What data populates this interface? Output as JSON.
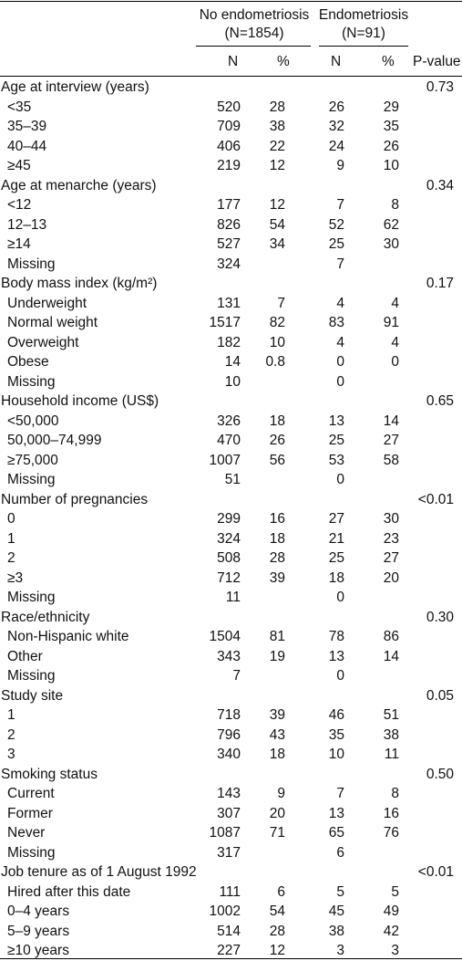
{
  "header": {
    "group1": "No endometriosis",
    "group1_n": "(N=1854)",
    "group2": "Endometriosis",
    "group2_n": "(N=91)",
    "col_n1": "N",
    "col_pct1": "%",
    "col_n2": "N",
    "col_pct2": "%",
    "col_p": "P-value"
  },
  "rows": [
    {
      "type": "cat",
      "label": "Age at interview (years)",
      "p": "0.73"
    },
    {
      "type": "item",
      "label": "<35",
      "n1": "520",
      "p1": "28",
      "n2": "26",
      "p2": "29"
    },
    {
      "type": "item",
      "label": "35–39",
      "n1": "709",
      "p1": "38",
      "n2": "32",
      "p2": "35"
    },
    {
      "type": "item",
      "label": "40–44",
      "n1": "406",
      "p1": "22",
      "n2": "24",
      "p2": "26"
    },
    {
      "type": "item",
      "label": "≥45",
      "n1": "219",
      "p1": "12",
      "n2": "9",
      "p2": "10"
    },
    {
      "type": "cat",
      "label": "Age at menarche (years)",
      "p": "0.34"
    },
    {
      "type": "item",
      "label": "<12",
      "n1": "177",
      "p1": "12",
      "n2": "7",
      "p2": "8"
    },
    {
      "type": "item",
      "label": "12–13",
      "n1": "826",
      "p1": "54",
      "n2": "52",
      "p2": "62"
    },
    {
      "type": "item",
      "label": "≥14",
      "n1": "527",
      "p1": "34",
      "n2": "25",
      "p2": "30"
    },
    {
      "type": "item",
      "label": "Missing",
      "n1": "324",
      "p1": "",
      "n2": "7",
      "p2": ""
    },
    {
      "type": "cat",
      "label": "Body mass index (kg/m²)",
      "p": "0.17"
    },
    {
      "type": "item",
      "label": "Underweight",
      "n1": "131",
      "p1": "7",
      "n2": "4",
      "p2": "4"
    },
    {
      "type": "item",
      "label": "Normal weight",
      "n1": "1517",
      "p1": "82",
      "n2": "83",
      "p2": "91"
    },
    {
      "type": "item",
      "label": "Overweight",
      "n1": "182",
      "p1": "10",
      "n2": "4",
      "p2": "4"
    },
    {
      "type": "item",
      "label": "Obese",
      "n1": "14",
      "p1": "0.8",
      "n2": "0",
      "p2": "0"
    },
    {
      "type": "item",
      "label": "Missing",
      "n1": "10",
      "p1": "",
      "n2": "0",
      "p2": ""
    },
    {
      "type": "cat",
      "label": "Household income (US$)",
      "p": "0.65"
    },
    {
      "type": "item",
      "label": "<50,000",
      "n1": "326",
      "p1": "18",
      "n2": "13",
      "p2": "14"
    },
    {
      "type": "item",
      "label": "50,000–74,999",
      "n1": "470",
      "p1": "26",
      "n2": "25",
      "p2": "27"
    },
    {
      "type": "item",
      "label": "≥75,000",
      "n1": "1007",
      "p1": "56",
      "n2": "53",
      "p2": "58"
    },
    {
      "type": "item",
      "label": "Missing",
      "n1": "51",
      "p1": "",
      "n2": "0",
      "p2": ""
    },
    {
      "type": "cat",
      "label": "Number of pregnancies",
      "p": "<0.01"
    },
    {
      "type": "item",
      "label": "0",
      "n1": "299",
      "p1": "16",
      "n2": "27",
      "p2": "30"
    },
    {
      "type": "item",
      "label": "1",
      "n1": "324",
      "p1": "18",
      "n2": "21",
      "p2": "23"
    },
    {
      "type": "item",
      "label": "2",
      "n1": "508",
      "p1": "28",
      "n2": "25",
      "p2": "27"
    },
    {
      "type": "item",
      "label": "≥3",
      "n1": "712",
      "p1": "39",
      "n2": "18",
      "p2": "20"
    },
    {
      "type": "item",
      "label": "Missing",
      "n1": "11",
      "p1": "",
      "n2": "0",
      "p2": ""
    },
    {
      "type": "cat",
      "label": "Race/ethnicity",
      "p": "0.30"
    },
    {
      "type": "item",
      "label": "Non-Hispanic white",
      "n1": "1504",
      "p1": "81",
      "n2": "78",
      "p2": "86"
    },
    {
      "type": "item",
      "label": "Other",
      "n1": "343",
      "p1": "19",
      "n2": "13",
      "p2": "14"
    },
    {
      "type": "item",
      "label": "Missing",
      "n1": "7",
      "p1": "",
      "n2": "0",
      "p2": ""
    },
    {
      "type": "cat",
      "label": "Study site",
      "p": "0.05"
    },
    {
      "type": "item",
      "label": "1",
      "n1": "718",
      "p1": "39",
      "n2": "46",
      "p2": "51"
    },
    {
      "type": "item",
      "label": "2",
      "n1": "796",
      "p1": "43",
      "n2": "35",
      "p2": "38"
    },
    {
      "type": "item",
      "label": "3",
      "n1": "340",
      "p1": "18",
      "n2": "10",
      "p2": "11"
    },
    {
      "type": "cat",
      "label": "Smoking status",
      "p": "0.50"
    },
    {
      "type": "item",
      "label": "Current",
      "n1": "143",
      "p1": "9",
      "n2": "7",
      "p2": "8"
    },
    {
      "type": "item",
      "label": "Former",
      "n1": "307",
      "p1": "20",
      "n2": "13",
      "p2": "16"
    },
    {
      "type": "item",
      "label": "Never",
      "n1": "1087",
      "p1": "71",
      "n2": "65",
      "p2": "76"
    },
    {
      "type": "item",
      "label": "Missing",
      "n1": "317",
      "p1": "",
      "n2": "6",
      "p2": ""
    },
    {
      "type": "cat",
      "label": "Job tenure as of 1 August 1992",
      "p": "<0.01"
    },
    {
      "type": "item",
      "label": "Hired after this date",
      "n1": "111",
      "p1": "6",
      "n2": "5",
      "p2": "5"
    },
    {
      "type": "item",
      "label": "0–4 years",
      "n1": "1002",
      "p1": "54",
      "n2": "45",
      "p2": "49"
    },
    {
      "type": "item",
      "label": "5–9 years",
      "n1": "514",
      "p1": "28",
      "n2": "38",
      "p2": "42"
    },
    {
      "type": "item",
      "label": "≥10 years",
      "n1": "227",
      "p1": "12",
      "n2": "3",
      "p2": "3"
    }
  ]
}
